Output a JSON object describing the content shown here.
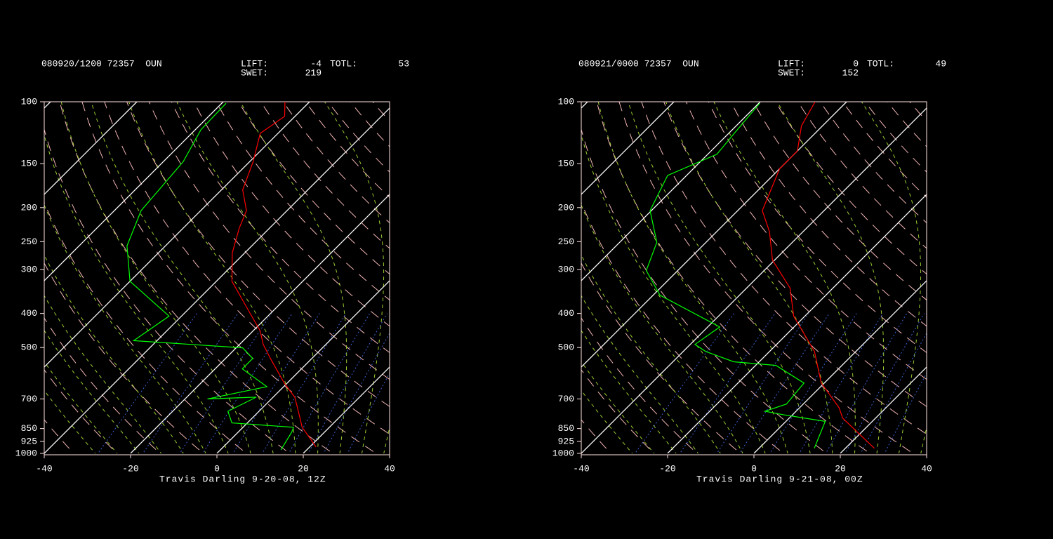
{
  "chart_data": [
    {
      "type": "skewt",
      "header": {
        "station": "080920/1200 72357  OUN",
        "lift_label": "LIFT:",
        "lift": -4,
        "totl_label": "TOTL:",
        "totl": 53,
        "swet_label": "SWET:",
        "swet": 219
      },
      "caption": "Travis Darling 9-20-08, 12Z",
      "xlim": [
        -40,
        40
      ],
      "xticks": [
        -40,
        -20,
        0,
        20,
        40
      ],
      "ylim": [
        1000,
        100
      ],
      "yticks": [
        100,
        150,
        200,
        250,
        300,
        400,
        500,
        700,
        850,
        925,
        1000
      ],
      "log_scale": true,
      "series": [
        {
          "color": "#ff0000",
          "pressure": [
            959,
            843,
            759,
            692,
            631,
            537,
            490,
            447,
            398,
            324,
            269,
            229,
            204,
            178,
            148,
            123,
            110,
            100
          ],
          "values": [
            21.5,
            13.7,
            9.1,
            5.0,
            -0.7,
            -9.6,
            -14.5,
            -18.5,
            -25.0,
            -36.4,
            -42.9,
            -47.0,
            -49.4,
            -55.1,
            -59.2,
            -64.1,
            -62.4,
            -65.7
          ]
        },
        {
          "color": "#00ff00",
          "pressure": [
            977,
            870,
            843,
            819,
            759,
            692,
            700,
            646,
            575,
            537,
            501,
            478,
            407,
            324,
            257,
            204,
            148,
            120,
            101
          ],
          "values": [
            14.0,
            12.4,
            11.7,
            -3.6,
            -7.2,
            -3.9,
            -14.8,
            -3.9,
            -13.7,
            -13.7,
            -18.5,
            -45.4,
            -42.9,
            -60.0,
            -68.9,
            -73.8,
            -75.4,
            -78.7,
            -79.0
          ]
        }
      ]
    },
    {
      "type": "skewt",
      "header": {
        "station": "080921/0000 72357  OUN",
        "lift_label": "LIFT:",
        "lift": 0,
        "totl_label": "TOTL:",
        "totl": 49,
        "swet_label": "SWET:",
        "swet": 152
      },
      "caption": "Travis Darling 9-21-08, 00Z",
      "xlim": [
        -40,
        40
      ],
      "xticks": [
        -40,
        -20,
        0,
        20,
        40
      ],
      "ylim": [
        1000,
        100
      ],
      "yticks": [
        100,
        150,
        200,
        250,
        300,
        400,
        500,
        700,
        850,
        925,
        1000
      ],
      "log_scale": true,
      "series": [
        {
          "color": "#ff0000",
          "pressure": [
            967,
            794,
            741,
            631,
            513,
            407,
            339,
            282,
            234,
            204,
            155,
            138,
            117,
            100
          ],
          "values": [
            26.7,
            12.4,
            9.1,
            -0.7,
            -9.6,
            -22.6,
            -29.9,
            -40.5,
            -47.8,
            -54.3,
            -60.0,
            -60.0,
            -64.9,
            -67.3
          ]
        },
        {
          "color": "#00ff00",
          "pressure": [
            967,
            811,
            776,
            759,
            724,
            631,
            562,
            549,
            513,
            490,
            437,
            355,
            302,
            251,
            204,
            162,
            141,
            123,
            101
          ],
          "values": [
            12.8,
            9.1,
            -2.3,
            -7.2,
            -3.9,
            -4.7,
            -15.3,
            -25.9,
            -34.8,
            -38.9,
            -37.2,
            -58.4,
            -67.3,
            -71.4,
            -80.3,
            -84.4,
            -77.9,
            -78.7,
            -79.8
          ]
        }
      ]
    }
  ]
}
